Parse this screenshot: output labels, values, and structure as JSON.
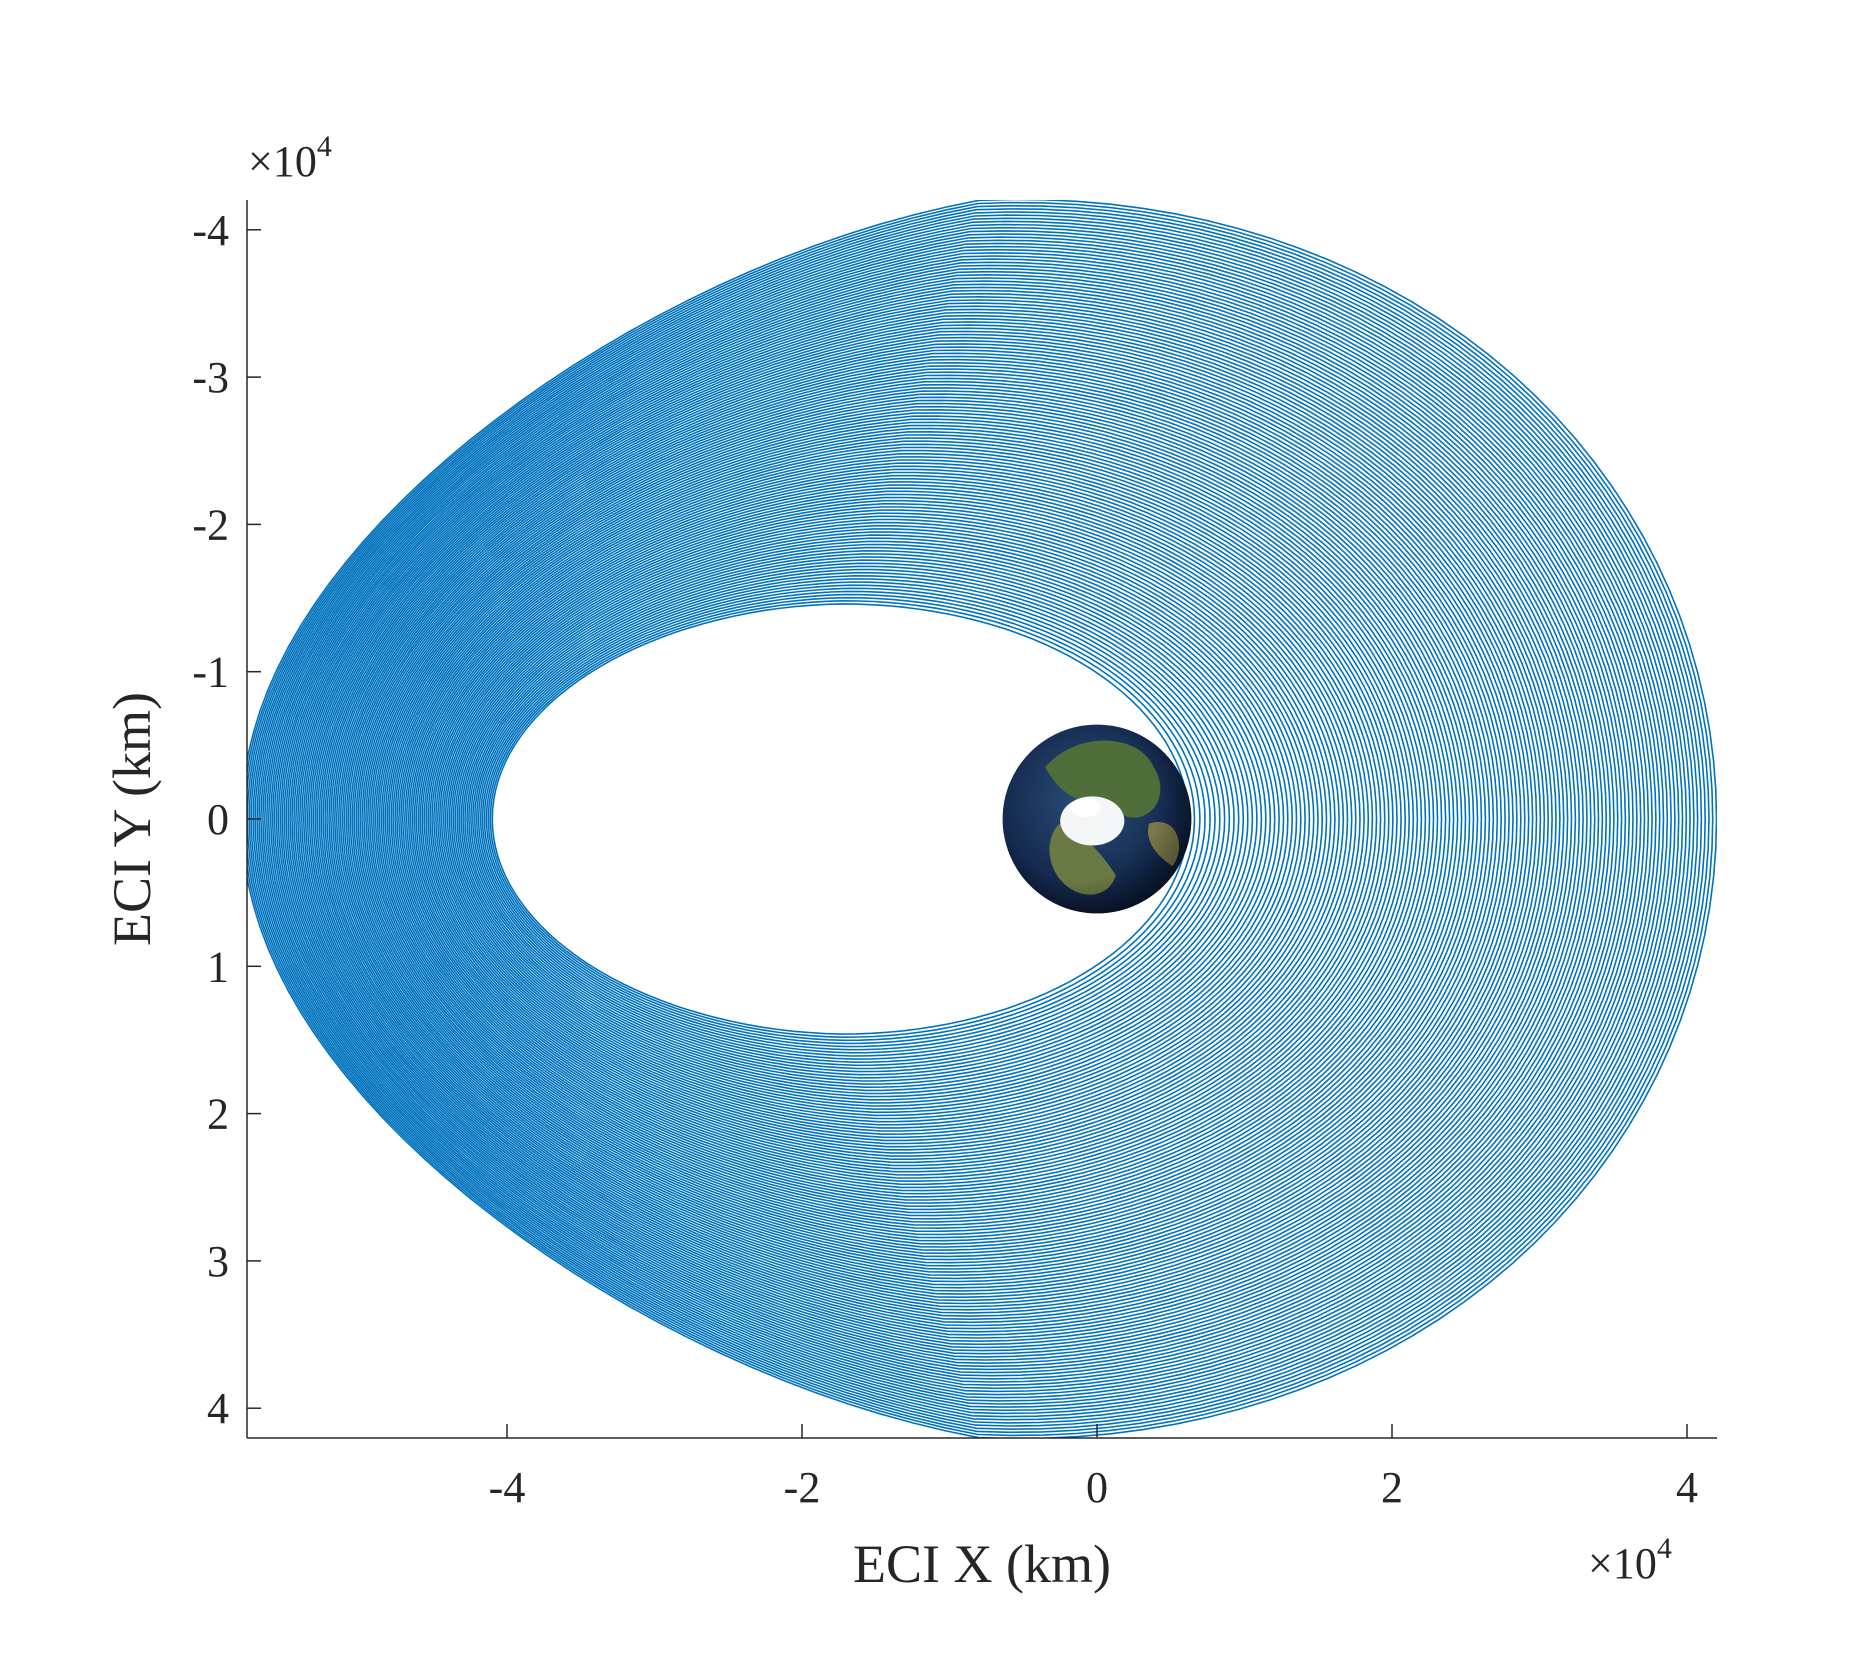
{
  "chart_data": {
    "type": "line",
    "title": "",
    "xlabel": "ECI X (km)",
    "ylabel": "ECI Y (km)",
    "x_exponent_label": "×10",
    "y_exponent_label": "×10",
    "exponent_power": "4",
    "xlim": [
      -4.2,
      4.2
    ],
    "ylim": [
      -4.2,
      4.2
    ],
    "y_axis_reversed": true,
    "xticks": [
      -4,
      -2,
      0,
      2,
      4
    ],
    "xtick_labels": [
      "-4",
      "-2",
      "0",
      "2",
      "4"
    ],
    "yticks": [
      -4,
      -3,
      -2,
      -1,
      0,
      1,
      2,
      3,
      4
    ],
    "ytick_labels": [
      "-4",
      "-3",
      "-2",
      "-1",
      "0",
      "1",
      "2",
      "3",
      "4"
    ],
    "grid": false,
    "legend": "none",
    "series_color": "#0072BD",
    "orbit_family": {
      "description_units": "x10^4 km",
      "inner_orbit": {
        "x_min": -4.1,
        "x_max": 0.62,
        "y_half_extent": 1.46
      },
      "outer_orbit": {
        "x_min": -5.8,
        "x_max": 4.2,
        "y_half_extent": 4.2
      },
      "num_orbits": 130
    },
    "central_body": {
      "name": "Earth",
      "center": [
        0,
        0
      ],
      "radius": 0.64
    }
  }
}
